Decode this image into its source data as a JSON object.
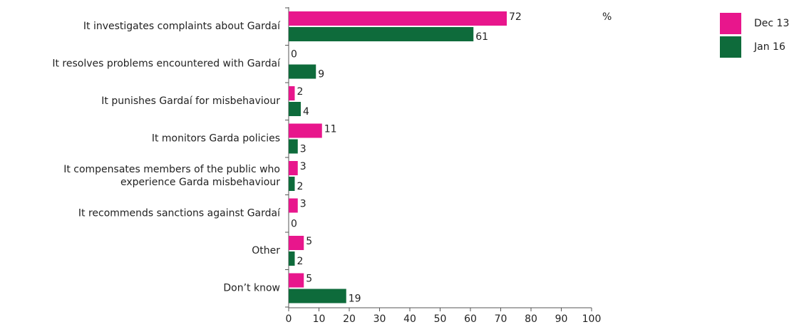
{
  "chart_data": {
    "type": "bar",
    "orientation": "horizontal",
    "annotation": "%",
    "categories": [
      "It investigates complaints about Gardaí",
      "It resolves problems encountered with Gardaí",
      "It punishes Gardaí for misbehaviour",
      "It monitors Garda policies",
      "It compensates members of the public who\nexperience Garda misbehaviour",
      "It recommends sanctions against Gardaí",
      "Other",
      "Don’t know"
    ],
    "series": [
      {
        "name": "Dec 13",
        "color": "#e8168c",
        "values": [
          72,
          0,
          2,
          11,
          3,
          3,
          5,
          5
        ]
      },
      {
        "name": "Jan 16",
        "color": "#0e6b3b",
        "values": [
          61,
          9,
          4,
          3,
          2,
          0,
          2,
          19
        ]
      }
    ],
    "xlim": [
      0,
      100
    ],
    "xticks": [
      0,
      10,
      20,
      30,
      40,
      50,
      60,
      70,
      80,
      90,
      100
    ],
    "legend": "top-right"
  }
}
